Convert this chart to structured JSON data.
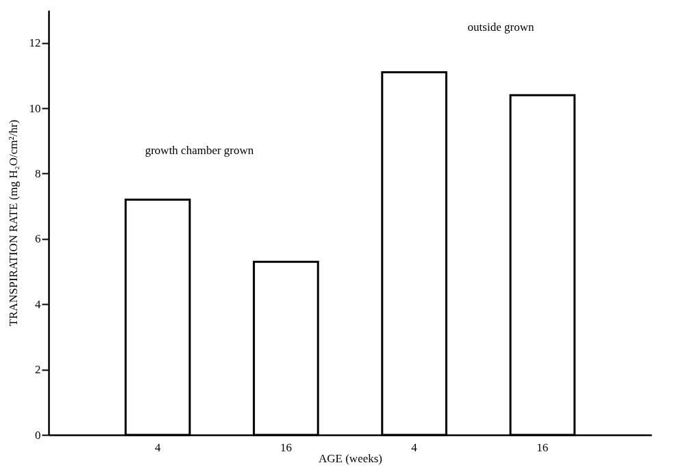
{
  "chart_data": {
    "type": "bar",
    "xlabel": "AGE (weeks)",
    "ylabel": "TRANSPIRATION RATE (mg H₂O/cm²/hr)",
    "categories": [
      "4",
      "16",
      "4",
      "16"
    ],
    "values": [
      7.2,
      5.3,
      11.1,
      10.4
    ],
    "color": "#ffffff",
    "ylim": [
      0,
      13
    ],
    "yticks": [
      0,
      2,
      4,
      6,
      8,
      10,
      12
    ],
    "annotations": [
      "growth chamber grown",
      "outside grown"
    ],
    "grid": false
  }
}
